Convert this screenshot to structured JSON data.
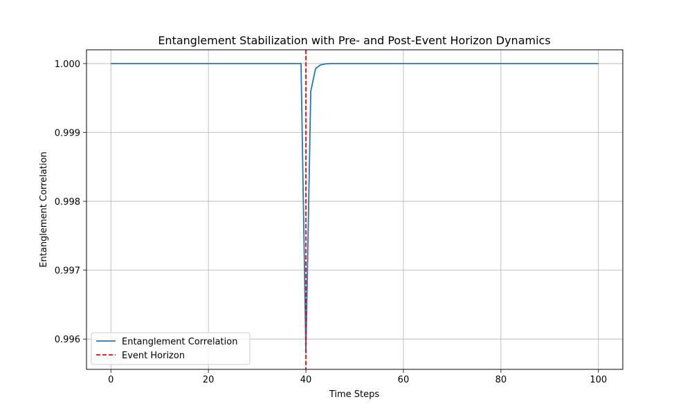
{
  "chart_data": {
    "type": "line",
    "title": "Entanglement Stabilization with Pre- and Post-Event Horizon Dynamics",
    "xlabel": "Time Steps",
    "ylabel": "Entanglement Correlation",
    "xlim": [
      -5,
      105
    ],
    "ylim": [
      0.99556,
      1.0002
    ],
    "xticks": [
      0,
      20,
      40,
      60,
      80,
      100
    ],
    "xtick_labels": [
      "0",
      "20",
      "40",
      "60",
      "80",
      "100"
    ],
    "yticks": [
      0.996,
      0.997,
      0.998,
      0.999,
      1.0
    ],
    "ytick_labels": [
      "0.996",
      "0.997",
      "0.998",
      "0.999",
      "1.000"
    ],
    "grid": true,
    "legend_position": "lower-left",
    "series": [
      {
        "name": "Entanglement Correlation",
        "color": "#1f77b4",
        "style": "solid",
        "x": [
          0,
          39,
          40,
          41,
          42,
          43,
          44,
          45,
          46,
          50,
          60,
          80,
          100
        ],
        "y": [
          1.0,
          1.0,
          0.9958,
          0.9996,
          0.99993,
          0.99998,
          0.999995,
          1.0,
          1.0,
          1.0,
          1.0,
          1.0,
          1.0
        ]
      }
    ],
    "vlines": [
      {
        "name": "Event Horizon",
        "x": 40,
        "color": "#ff0000",
        "style": "dashed"
      }
    ]
  }
}
